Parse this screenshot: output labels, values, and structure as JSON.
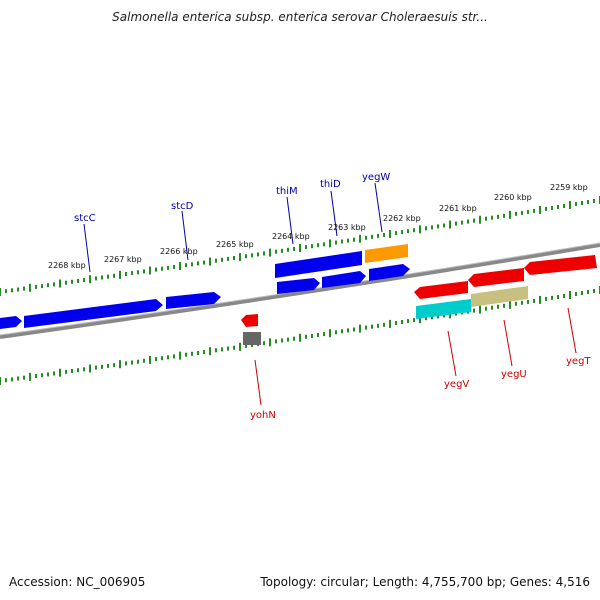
{
  "title": "Salmonella enterica subsp. enterica serovar Choleraesuis str...",
  "footer": {
    "accession": "Accession: NC_006905",
    "summary": "Topology: circular; Length: 4,755,700 bp; Genes: 4,516"
  },
  "colors": {
    "forward_gene": "#0000ee",
    "reverse_gene": "#ee0000",
    "backbone": "#888888",
    "ticks": "#228b22",
    "forward_label": "#0000aa",
    "reverse_label": "#cc0000",
    "orange_feature": "#ff9900",
    "cyan_feature": "#00cccc",
    "khaki_feature": "#c8c080",
    "grey_feature": "#666666"
  },
  "scale_labels": [
    "2268 kbp",
    "2267 kbp",
    "2266 kbp",
    "2265 kbp",
    "2264 kbp",
    "2263 kbp",
    "2262 kbp",
    "2261 kbp",
    "2260 kbp",
    "2259 kbp"
  ],
  "forward_genes": [
    "stcC",
    "stcD",
    "thiM",
    "thiD",
    "yegW"
  ],
  "reverse_genes": [
    "yohN",
    "yegV",
    "yegU",
    "yegT"
  ]
}
